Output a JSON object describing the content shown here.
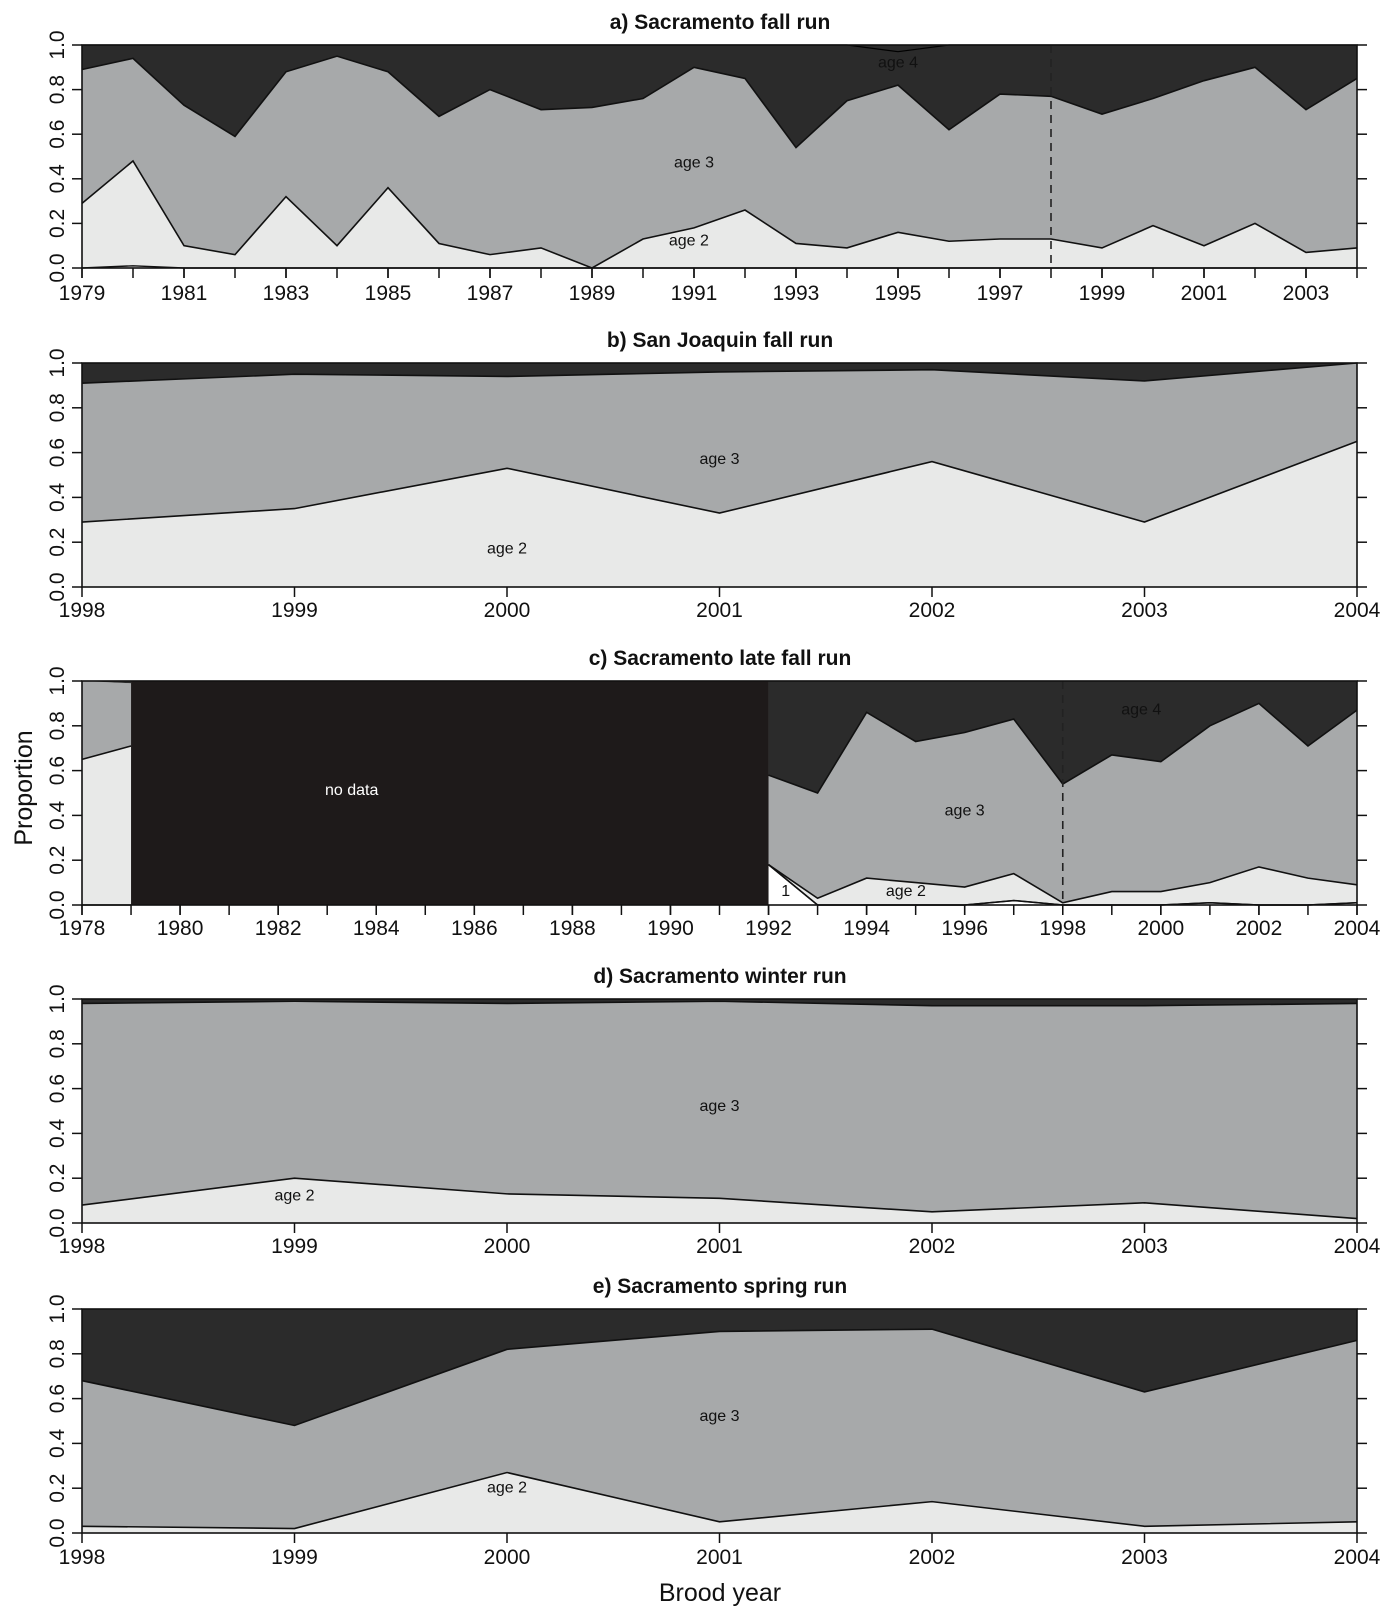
{
  "figure": {
    "ylabel": "Proportion",
    "xlabel": "Brood year"
  },
  "colors": {
    "age2": "#e8e9e8",
    "age3": "#a7a9aa",
    "age4": "#2b2b2b",
    "nodata": "#1e1a1a",
    "age1": "#ffffff",
    "line": "#111111"
  },
  "chart_data": [
    {
      "type": "area",
      "title": "a)  Sacramento fall run",
      "x": [
        1979,
        1980,
        1981,
        1982,
        1983,
        1984,
        1985,
        1986,
        1987,
        1988,
        1989,
        1990,
        1991,
        1992,
        1993,
        1994,
        1995,
        1996,
        1997,
        1998,
        1999,
        2000,
        2001,
        2002,
        2003,
        2004
      ],
      "xlim": [
        1979,
        2004
      ],
      "xticks": [
        1979,
        1981,
        1983,
        1985,
        1987,
        1989,
        1991,
        1993,
        1995,
        1997,
        1999,
        2001,
        2003
      ],
      "ylim": [
        0,
        1
      ],
      "yticks": [
        "0.0",
        "0.2",
        "0.4",
        "0.6",
        "0.8",
        "1.0"
      ],
      "series": [
        {
          "name": "age 2",
          "values": [
            0.29,
            0.48,
            0.1,
            0.06,
            0.32,
            0.1,
            0.36,
            0.11,
            0.06,
            0.09,
            0.0,
            0.13,
            0.18,
            0.26,
            0.11,
            0.09,
            0.16,
            0.12,
            0.13,
            0.13,
            0.09,
            0.19,
            0.1,
            0.2,
            0.07,
            0.09
          ]
        },
        {
          "name": "age 3",
          "values": [
            0.6,
            0.46,
            0.63,
            0.53,
            0.56,
            0.85,
            0.52,
            0.57,
            0.74,
            0.62,
            0.72,
            0.63,
            0.72,
            0.59,
            0.43,
            0.66,
            0.66,
            0.5,
            0.65,
            0.64,
            0.6,
            0.57,
            0.74,
            0.7,
            0.64,
            0.76
          ]
        },
        {
          "name": "age 4",
          "values": [
            0.11,
            0.06,
            0.27,
            0.41,
            0.12,
            0.05,
            0.12,
            0.32,
            0.2,
            0.29,
            0.28,
            0.24,
            0.1,
            0.15,
            0.46,
            0.25,
            0.18,
            0.38,
            0.22,
            0.23,
            0.31,
            0.24,
            0.16,
            0.1,
            0.29,
            0.15
          ]
        }
      ],
      "age1_line": [
        0.0,
        0.01,
        0.0,
        0.0,
        0.0,
        0.0,
        0.0,
        0.0,
        0.0,
        0.0,
        0.0,
        0.0,
        0.0,
        0.0,
        0.0,
        0.0,
        0.0,
        0.0,
        0.0,
        0.0,
        0.0,
        0.0,
        0.0,
        0.0,
        0.0,
        0.0
      ],
      "age5_line": [
        1.0,
        1.0,
        1.0,
        1.0,
        1.0,
        1.0,
        1.0,
        1.0,
        1.0,
        1.0,
        1.0,
        1.0,
        1.0,
        1.0,
        1.0,
        1.0,
        0.97,
        1.0,
        1.0,
        1.0,
        1.0,
        1.0,
        1.0,
        1.0,
        1.0,
        1.0
      ],
      "vline": 1998,
      "annotations": [
        {
          "text": "age 4",
          "x": 1995.0,
          "y": 0.9,
          "color": "#111111"
        },
        {
          "text": "age 3",
          "x": 1991.0,
          "y": 0.45,
          "color": "#111111"
        },
        {
          "text": "age 2",
          "x": 1990.9,
          "y": 0.1,
          "color": "#111111"
        }
      ]
    },
    {
      "type": "area",
      "title": "b)  San Joaquin fall run",
      "x": [
        1998,
        1999,
        2000,
        2001,
        2002,
        2003,
        2004
      ],
      "xlim": [
        1998,
        2004
      ],
      "xticks": [
        1998,
        1999,
        2000,
        2001,
        2002,
        2003,
        2004
      ],
      "ylim": [
        0,
        1
      ],
      "yticks": [
        "0.0",
        "0.2",
        "0.4",
        "0.6",
        "0.8",
        "1.0"
      ],
      "series": [
        {
          "name": "age 2",
          "values": [
            0.29,
            0.35,
            0.53,
            0.33,
            0.56,
            0.29,
            0.65
          ]
        },
        {
          "name": "age 3",
          "values": [
            0.62,
            0.6,
            0.41,
            0.63,
            0.41,
            0.63,
            0.35
          ]
        },
        {
          "name": "age 4",
          "values": [
            0.09,
            0.05,
            0.06,
            0.04,
            0.03,
            0.08,
            0.0
          ]
        }
      ],
      "annotations": [
        {
          "text": "age 3",
          "x": 2001.0,
          "y": 0.55,
          "color": "#111111"
        },
        {
          "text": "age 2",
          "x": 2000.0,
          "y": 0.15,
          "color": "#111111"
        }
      ]
    },
    {
      "type": "area",
      "title": "c)  Sacramento late fall run",
      "x": [
        1992,
        1993,
        1994,
        1995,
        1996,
        1997,
        1998,
        1999,
        2000,
        2001,
        2002,
        2003,
        2004
      ],
      "xlim": [
        1978,
        2004
      ],
      "xticks": [
        1978,
        1980,
        1982,
        1984,
        1986,
        1988,
        1990,
        1992,
        1994,
        1996,
        1998,
        2000,
        2002,
        2004
      ],
      "ylim": [
        0,
        1
      ],
      "yticks": [
        "0.0",
        "0.2",
        "0.4",
        "0.6",
        "0.8",
        "1.0"
      ],
      "series": [
        {
          "name": "age 1",
          "values": [
            0.18,
            0.0,
            0.0,
            0.0,
            0.0,
            0.02,
            0.0,
            0.0,
            0.0,
            0.01,
            0.0,
            0.0,
            0.01
          ]
        },
        {
          "name": "age 2",
          "values": [
            0.0,
            0.03,
            0.12,
            0.1,
            0.08,
            0.12,
            0.01,
            0.06,
            0.06,
            0.09,
            0.17,
            0.12,
            0.08
          ]
        },
        {
          "name": "age 3",
          "values": [
            0.4,
            0.47,
            0.74,
            0.63,
            0.69,
            0.69,
            0.53,
            0.61,
            0.58,
            0.7,
            0.73,
            0.59,
            0.78
          ]
        },
        {
          "name": "age 4",
          "values": [
            0.42,
            0.5,
            0.14,
            0.27,
            0.23,
            0.17,
            0.46,
            0.33,
            0.36,
            0.2,
            0.1,
            0.29,
            0.13
          ]
        }
      ],
      "early": {
        "x": [
          1978,
          1979
        ],
        "age2": [
          0.65,
          0.71
        ],
        "age3": [
          0.35,
          0.28
        ],
        "age4": [
          0.0,
          0.01
        ]
      },
      "nodata": {
        "from": 1979,
        "to": 1992,
        "label": "no data"
      },
      "vline": 1998,
      "annotations": [
        {
          "text": "no data",
          "x": 1983.5,
          "y": 0.49,
          "color": "#ffffff"
        },
        {
          "text": "age 3",
          "x": 1996.0,
          "y": 0.4,
          "color": "#111111"
        },
        {
          "text": "age 2",
          "x": 1994.8,
          "y": 0.04,
          "color": "#111111"
        },
        {
          "text": "1",
          "x": 1992.35,
          "y": 0.04,
          "color": "#111111"
        },
        {
          "text": "age 4",
          "x": 1999.6,
          "y": 0.85,
          "color": "#111111"
        }
      ]
    },
    {
      "type": "area",
      "title": "d)  Sacramento winter run",
      "x": [
        1998,
        1999,
        2000,
        2001,
        2002,
        2003,
        2004
      ],
      "xlim": [
        1998,
        2004
      ],
      "xticks": [
        1998,
        1999,
        2000,
        2001,
        2002,
        2003,
        2004
      ],
      "ylim": [
        0,
        1
      ],
      "yticks": [
        "0.0",
        "0.2",
        "0.4",
        "0.6",
        "0.8",
        "1.0"
      ],
      "series": [
        {
          "name": "age 2",
          "values": [
            0.08,
            0.2,
            0.13,
            0.11,
            0.05,
            0.09,
            0.02
          ]
        },
        {
          "name": "age 3",
          "values": [
            0.9,
            0.79,
            0.85,
            0.88,
            0.92,
            0.88,
            0.96
          ]
        },
        {
          "name": "age 4",
          "values": [
            0.02,
            0.01,
            0.02,
            0.01,
            0.03,
            0.03,
            0.02
          ]
        }
      ],
      "annotations": [
        {
          "text": "age 3",
          "x": 2001.0,
          "y": 0.5,
          "color": "#111111"
        },
        {
          "text": "age 2",
          "x": 1999.0,
          "y": 0.1,
          "color": "#111111"
        }
      ]
    },
    {
      "type": "area",
      "title": "e)  Sacramento spring run",
      "x": [
        1998,
        1999,
        2000,
        2001,
        2002,
        2003,
        2004
      ],
      "xlim": [
        1998,
        2004
      ],
      "xticks": [
        1998,
        1999,
        2000,
        2001,
        2002,
        2003,
        2004
      ],
      "ylim": [
        0,
        1
      ],
      "yticks": [
        "0.0",
        "0.2",
        "0.4",
        "0.6",
        "0.8",
        "1.0"
      ],
      "series": [
        {
          "name": "age 2",
          "values": [
            0.03,
            0.02,
            0.27,
            0.05,
            0.14,
            0.03,
            0.05
          ]
        },
        {
          "name": "age 3",
          "values": [
            0.65,
            0.46,
            0.55,
            0.85,
            0.77,
            0.6,
            0.81
          ]
        },
        {
          "name": "age 4",
          "values": [
            0.32,
            0.52,
            0.18,
            0.1,
            0.09,
            0.37,
            0.14
          ]
        }
      ],
      "annotations": [
        {
          "text": "age 3",
          "x": 2001.0,
          "y": 0.5,
          "color": "#111111"
        },
        {
          "text": "age 2",
          "x": 2000.0,
          "y": 0.18,
          "color": "#111111"
        }
      ]
    }
  ]
}
